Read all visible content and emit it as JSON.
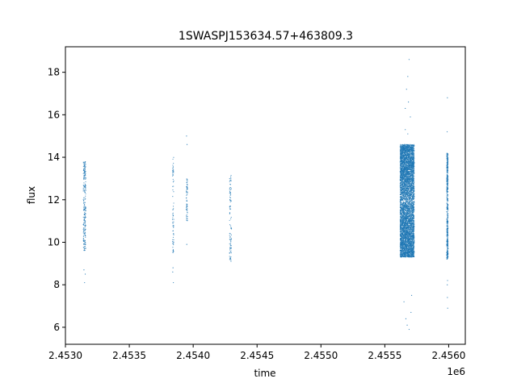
{
  "chart_data": {
    "type": "scatter",
    "title": "1SWASPJ153634.57+463809.3",
    "xlabel": "time",
    "ylabel": "flux",
    "x_offset_label": "1e6",
    "xlim": [
      2453000,
      2456130
    ],
    "ylim": [
      5.2,
      19.2
    ],
    "x_ticks": [
      2453000,
      2453500,
      2454000,
      2454500,
      2455000,
      2455500,
      2456000
    ],
    "x_tick_labels": [
      "2.4530",
      "2.4535",
      "2.4540",
      "2.4545",
      "2.4550",
      "2.4555",
      "2.4560"
    ],
    "y_ticks": [
      6,
      8,
      10,
      12,
      14,
      16,
      18
    ],
    "y_tick_labels": [
      "6",
      "8",
      "10",
      "12",
      "14",
      "16",
      "18"
    ],
    "grid": false,
    "legend": "none",
    "marker_color": "#1f77b4",
    "clusters": [
      {
        "x_min": 2453140,
        "x_max": 2453160,
        "y_min": 9.6,
        "y_max": 13.8,
        "count": 220,
        "outliers": [
          [
            2453145,
            8.7
          ],
          [
            2453150,
            8.1
          ],
          [
            2453155,
            8.5
          ]
        ]
      },
      {
        "x_min": 2453838,
        "x_max": 2453848,
        "y_min": 9.5,
        "y_max": 14.0,
        "count": 70,
        "outliers": [
          [
            2453842,
            8.8
          ],
          [
            2453845,
            8.1
          ],
          [
            2453840,
            8.6
          ]
        ]
      },
      {
        "x_min": 2453945,
        "x_max": 2453955,
        "y_min": 11.0,
        "y_max": 13.0,
        "count": 60,
        "outliers": [
          [
            2453950,
            9.9
          ],
          [
            2453948,
            15.0
          ],
          [
            2453952,
            14.6
          ]
        ]
      },
      {
        "x_min": 2454285,
        "x_max": 2454300,
        "y_min": 9.1,
        "y_max": 13.3,
        "count": 90,
        "outliers": []
      },
      {
        "x_min": 2455620,
        "x_max": 2455730,
        "y_min": 9.3,
        "y_max": 14.6,
        "count": 5200,
        "outliers": [
          [
            2455690,
            18.6
          ],
          [
            2455680,
            17.8
          ],
          [
            2455670,
            17.2
          ],
          [
            2455685,
            16.6
          ],
          [
            2455660,
            16.3
          ],
          [
            2455700,
            15.9
          ],
          [
            2455675,
            6.1
          ],
          [
            2455690,
            5.9
          ],
          [
            2455665,
            6.4
          ],
          [
            2455705,
            6.7
          ],
          [
            2455650,
            7.2
          ],
          [
            2455710,
            7.5
          ],
          [
            2455660,
            15.3
          ],
          [
            2455680,
            15.1
          ]
        ]
      },
      {
        "x_min": 2455985,
        "x_max": 2455995,
        "y_min": 9.2,
        "y_max": 14.2,
        "count": 450,
        "outliers": [
          [
            2455990,
            16.8
          ],
          [
            2455988,
            15.2
          ],
          [
            2455992,
            6.9
          ],
          [
            2455990,
            7.4
          ],
          [
            2455991,
            8.2
          ],
          [
            2455989,
            8.0
          ]
        ]
      }
    ]
  }
}
